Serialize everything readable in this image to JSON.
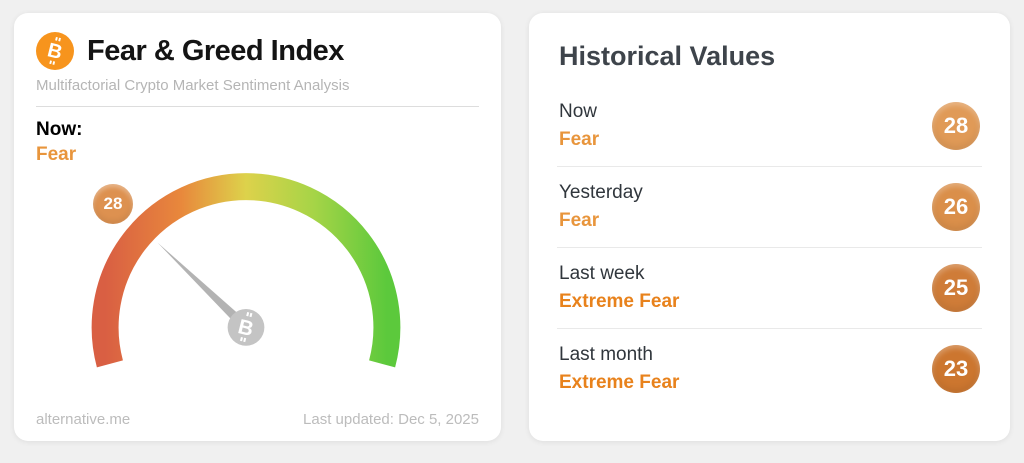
{
  "page": {
    "background": "#f0f0f0"
  },
  "colors": {
    "bitcoin_orange": "#f7941d",
    "needle_gray": "#b3b3b3",
    "pivot_gray": "#c4c4c4",
    "fear_orange": "#e8953c",
    "extreme_fear_orange": "#e8821c"
  },
  "left_card": {
    "icon": "bitcoin-icon",
    "title": "Fear & Greed Index",
    "subtitle": "Multifactorial Crypto Market Sentiment Analysis",
    "now_label": "Now:",
    "now_classification": "Fear",
    "now_classification_color": "#e8953c",
    "gauge_badge_color": "#dd9150",
    "footer_link": "alternative.me",
    "last_updated": "Last updated: Dec 5, 2025"
  },
  "right_card": {
    "title": "Historical Values",
    "rows": [
      {
        "label": "Now",
        "classification": "Fear",
        "value": "28",
        "classification_color": "#e8953c",
        "badge_color": "#e09a57"
      },
      {
        "label": "Yesterday",
        "classification": "Fear",
        "value": "26",
        "classification_color": "#e8953c",
        "badge_color": "#da8f4a"
      },
      {
        "label": "Last week",
        "classification": "Extreme Fear",
        "value": "25",
        "classification_color": "#e8821c",
        "badge_color": "#cf7c38"
      },
      {
        "label": "Last month",
        "classification": "Extreme Fear",
        "value": "23",
        "classification_color": "#e8821c",
        "badge_color": "#cc762f"
      }
    ]
  },
  "chart_data": {
    "type": "gauge",
    "title": "Fear & Greed Index",
    "subtitle": "Multifactorial Crypto Market Sentiment Analysis",
    "value": 28,
    "min": 0,
    "max": 100,
    "classification": "Fear",
    "start_angle_deg": 195,
    "sweep_deg": 210,
    "scale_colors": [
      "#d95f43",
      "#e8883c",
      "#ddd24b",
      "#a6d447",
      "#5cc93c"
    ],
    "last_updated": "Dec 5, 2025",
    "historical": [
      {
        "label": "Now",
        "value": 28,
        "classification": "Fear"
      },
      {
        "label": "Yesterday",
        "value": 26,
        "classification": "Fear"
      },
      {
        "label": "Last week",
        "value": 25,
        "classification": "Extreme Fear"
      },
      {
        "label": "Last month",
        "value": 23,
        "classification": "Extreme Fear"
      }
    ]
  }
}
